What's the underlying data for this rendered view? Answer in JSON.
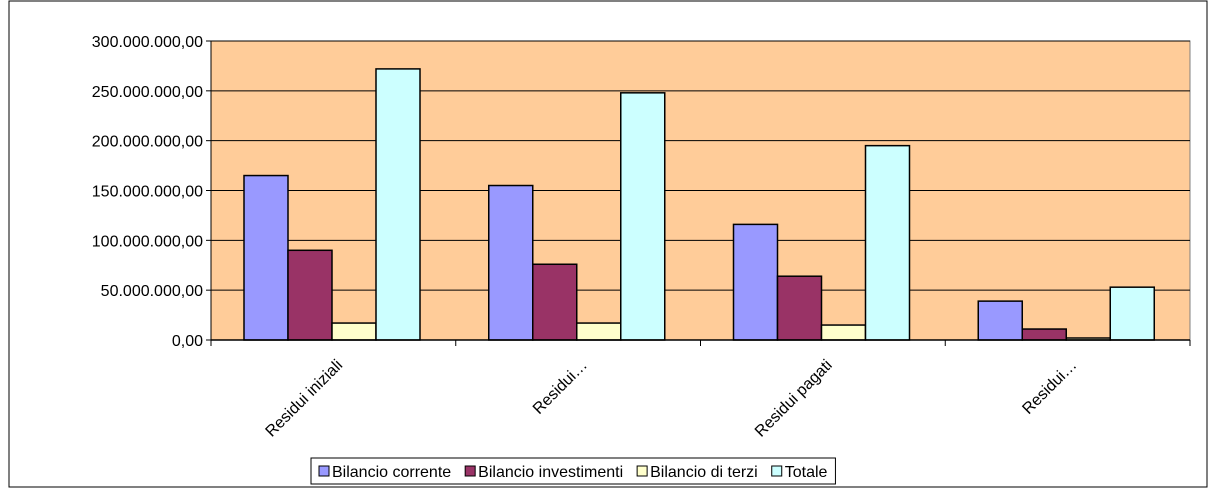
{
  "chart_data": {
    "type": "bar",
    "title": "",
    "xlabel": "",
    "ylabel": "",
    "categories": [
      "Residui iniziali",
      "Residui…",
      "Residui pagati",
      "Residui…"
    ],
    "series": [
      {
        "name": "Bilancio corrente",
        "color": "#9999ff",
        "values": [
          165000000,
          155000000,
          116000000,
          39000000
        ]
      },
      {
        "name": "Bilancio investimenti",
        "color": "#993366",
        "values": [
          90000000,
          76000000,
          64000000,
          11000000
        ]
      },
      {
        "name": "Bilancio di terzi",
        "color": "#ffffcc",
        "values": [
          17000000,
          17000000,
          15000000,
          2000000
        ]
      },
      {
        "name": "Totale",
        "color": "#ccffff",
        "values": [
          272000000,
          248000000,
          195000000,
          53000000
        ]
      }
    ],
    "ylim": [
      0,
      300000000
    ],
    "yticks": [
      0,
      50000000,
      100000000,
      150000000,
      200000000,
      250000000,
      300000000
    ],
    "ytick_labels": [
      "0,00",
      "50.000.000,00",
      "100.000.000,00",
      "150.000.000,00",
      "200.000.000,00",
      "250.000.000,00",
      "300.000.000,00"
    ],
    "grid": true,
    "legend_position": "bottom",
    "plot_background": "#ffcc99"
  }
}
